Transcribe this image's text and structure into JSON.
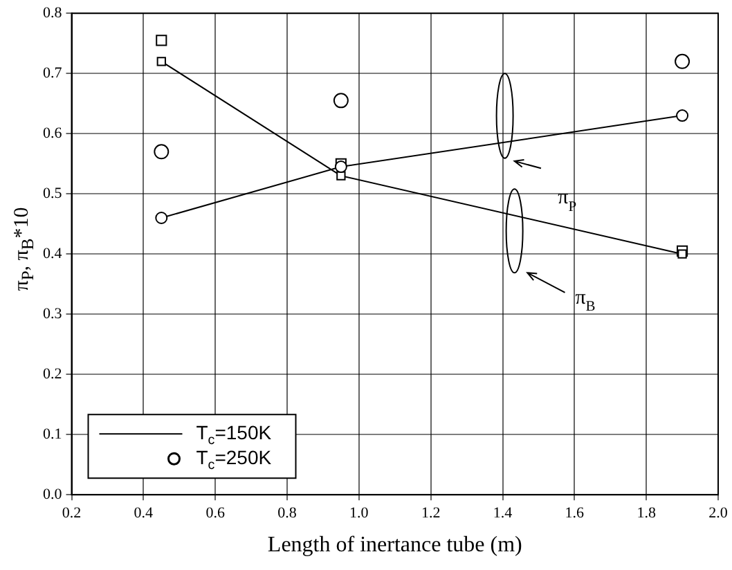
{
  "chart_data": {
    "type": "line",
    "xlabel": "Length of inertance tube (m)",
    "ylabel": "π$_{P}$, π$_{B}$*10",
    "xlim": [
      0.2,
      2.0
    ],
    "xticks": [
      0.2,
      0.4,
      0.6,
      0.8,
      {
        "value": 1.0,
        "label": "1.0"
      },
      1.2,
      1.4,
      1.6,
      1.8,
      {
        "value": 2.0,
        "label": "2.0"
      }
    ],
    "ylim": [
      0.0,
      0.8
    ],
    "yticks": [
      {
        "value": 0.0,
        "label": "0.0"
      },
      0.1,
      0.2,
      0.3,
      0.4,
      0.5,
      0.6,
      0.7,
      0.8
    ],
    "grid": true,
    "legend": "bottom left",
    "series": [
      {
        "name": "T$_{c}$=150K",
        "type": "line",
        "marker": "circle",
        "line_style": "solid",
        "color": "#000000",
        "x": [
          0.45,
          0.95,
          1.9
        ],
        "values": [
          0.46,
          0.545,
          0.63
        ]
      },
      {
        "type": "line",
        "marker": "square",
        "line_style": "solid",
        "color": "#000000",
        "x": [
          0.45,
          0.95,
          1.9
        ],
        "values": [
          0.72,
          0.53,
          0.4
        ]
      },
      {
        "name": "T$_{c}$=250K",
        "type": "scatter",
        "marker": "circle",
        "color": "#000000",
        "x": [
          0.45,
          0.95,
          1.9
        ],
        "values": [
          0.57,
          0.655,
          0.72
        ]
      },
      {
        "type": "scatter",
        "marker": "square",
        "color": "#000000",
        "x": [
          0.45,
          0.95,
          1.9
        ],
        "values": [
          0.755,
          0.55,
          0.405
        ]
      }
    ],
    "annotations": [
      "π$_{P}$",
      "π$_{B}$"
    ]
  }
}
